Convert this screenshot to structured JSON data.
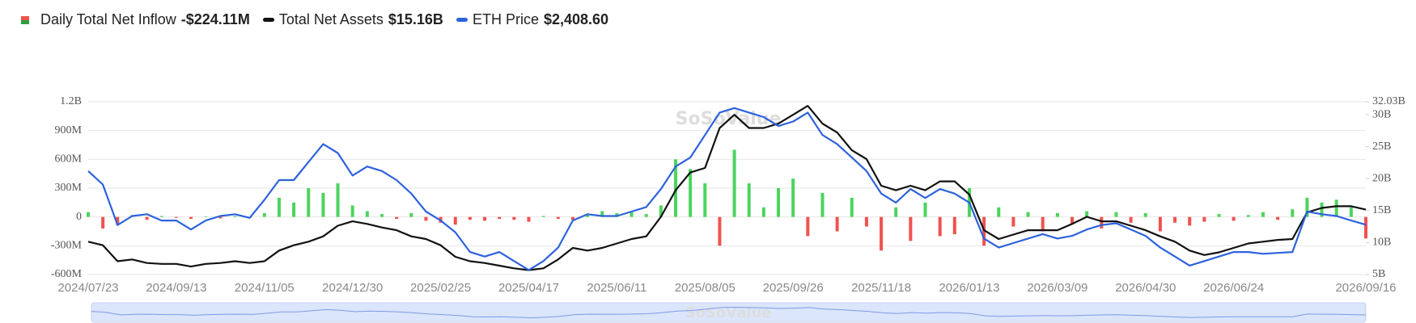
{
  "chart_data": {
    "type": "combo",
    "watermark": "SoSoValue",
    "categories": [
      "2024/07/23",
      null,
      null,
      null,
      null,
      null,
      "2024/09/13",
      null,
      null,
      null,
      null,
      null,
      "2024/11/05",
      null,
      null,
      null,
      null,
      null,
      "2024/12/30",
      null,
      null,
      null,
      null,
      null,
      "2025/02/25",
      null,
      null,
      null,
      null,
      null,
      "2025/04/17",
      null,
      null,
      null,
      null,
      null,
      "2025/06/11",
      null,
      null,
      null,
      null,
      null,
      "2025/08/05",
      null,
      null,
      null,
      null,
      null,
      "2025/09/26",
      null,
      null,
      null,
      null,
      null,
      "2025/11/18",
      null,
      null,
      null,
      null,
      null,
      "2026/01/13",
      null,
      null,
      null,
      null,
      null,
      "2026/03/09",
      null,
      null,
      null,
      null,
      null,
      "2026/04/30",
      null,
      null,
      null,
      null,
      null,
      "2026/06/24",
      null,
      null,
      null,
      null,
      null,
      null,
      null,
      null,
      "2026/09/16"
    ],
    "ylim": [
      -600,
      1200
    ],
    "yticks": [
      {
        "value": -600,
        "label": "-600M"
      },
      {
        "value": -300,
        "label": "-300M"
      },
      0,
      {
        "value": 300,
        "label": "300M"
      },
      {
        "value": 600,
        "label": "600M"
      },
      {
        "value": 900,
        "label": "900M"
      },
      {
        "value": 1200,
        "label": "1.2B"
      }
    ],
    "y2lim": [
      5,
      32.03
    ],
    "y2ticks": [
      {
        "value": 5,
        "label": "5B"
      },
      {
        "value": 10,
        "label": "10B"
      },
      {
        "value": 15,
        "label": "15B"
      },
      {
        "value": 20,
        "label": "20B"
      },
      {
        "value": 25,
        "label": "25B"
      },
      {
        "value": 30,
        "label": "30B"
      },
      {
        "value": 32.03,
        "label": "32.03B"
      }
    ],
    "y3lim": [
      1400,
      4900
    ],
    "grid": true,
    "series": [
      {
        "name": "Daily Total Net Inflow",
        "latest": "-$224.11M",
        "type": "bar",
        "color": "#4cd45e",
        "negative_color": "#f0524f",
        "values": [
          50,
          -120,
          -80,
          20,
          -30,
          10,
          -10,
          -20,
          5,
          -15,
          10,
          -10,
          40,
          200,
          150,
          300,
          250,
          350,
          120,
          60,
          30,
          -20,
          40,
          -40,
          -60,
          -80,
          -30,
          -40,
          -20,
          -30,
          -50,
          10,
          -20,
          -30,
          30,
          60,
          40,
          50,
          30,
          120,
          600,
          500,
          350,
          -300,
          700,
          350,
          100,
          300,
          400,
          -200,
          250,
          -150,
          200,
          -100,
          -350,
          100,
          -250,
          150,
          -200,
          -180,
          300,
          -300,
          100,
          -100,
          50,
          -150,
          40,
          -80,
          60,
          -120,
          50,
          -60,
          40,
          -150,
          -60,
          -90,
          -50,
          30,
          -40,
          20,
          50,
          -30,
          80,
          200,
          150,
          180,
          100,
          -224.11
        ]
      },
      {
        "name": "Total Net Assets",
        "latest": "$15.16B",
        "type": "line",
        "axis": "y2",
        "color": "#111111",
        "values": [
          10.14,
          9.58,
          7.08,
          7.36,
          6.81,
          6.67,
          6.67,
          6.25,
          6.67,
          6.81,
          7.08,
          6.81,
          7.08,
          8.75,
          9.58,
          10.14,
          10.97,
          12.64,
          13.33,
          12.92,
          12.36,
          11.94,
          10.97,
          10.56,
          9.58,
          7.78,
          7.08,
          6.81,
          6.39,
          5.97,
          5.69,
          5.97,
          7.36,
          9.17,
          8.75,
          9.17,
          9.86,
          10.56,
          10.97,
          14.03,
          18.19,
          20.97,
          21.67,
          27.92,
          30.0,
          27.92,
          27.92,
          28.61,
          30.0,
          31.39,
          28.61,
          27.22,
          24.44,
          23.06,
          18.89,
          18.19,
          18.89,
          18.19,
          19.58,
          19.58,
          17.5,
          11.94,
          10.56,
          11.25,
          11.94,
          11.94,
          11.94,
          12.92,
          14.03,
          13.33,
          13.33,
          12.64,
          11.94,
          10.97,
          10.14,
          8.75,
          8.06,
          8.47,
          9.17,
          9.86,
          10.14,
          10.42,
          10.56,
          14.72,
          15.42,
          15.69,
          15.69,
          15.16
        ]
      },
      {
        "name": "ETH Price",
        "latest": "$2,408.60",
        "type": "line",
        "axis": "y3",
        "color": "#2d62dc",
        "values": [
          3496,
          3223,
          2403,
          2585,
          2621,
          2494,
          2494,
          2312,
          2494,
          2585,
          2621,
          2548,
          2913,
          3314,
          3314,
          3679,
          4043,
          3861,
          3405,
          3588,
          3496,
          3314,
          3041,
          2676,
          2494,
          2257,
          1856,
          1765,
          1856,
          1673,
          1491,
          1673,
          1947,
          2494,
          2621,
          2585,
          2585,
          2676,
          2767,
          3132,
          3588,
          3770,
          4226,
          4681,
          4773,
          4681,
          4590,
          4408,
          4499,
          4681,
          4226,
          4043,
          3770,
          3496,
          3041,
          2858,
          3132,
          2950,
          3132,
          3041,
          2858,
          2129,
          1947,
          2038,
          2129,
          2220,
          2129,
          2184,
          2312,
          2403,
          2439,
          2312,
          2184,
          1947,
          1765,
          1582,
          1673,
          1765,
          1856,
          1856,
          1820,
          1838,
          1856,
          2676,
          2621,
          2585,
          2494,
          2408.6
        ]
      }
    ]
  }
}
